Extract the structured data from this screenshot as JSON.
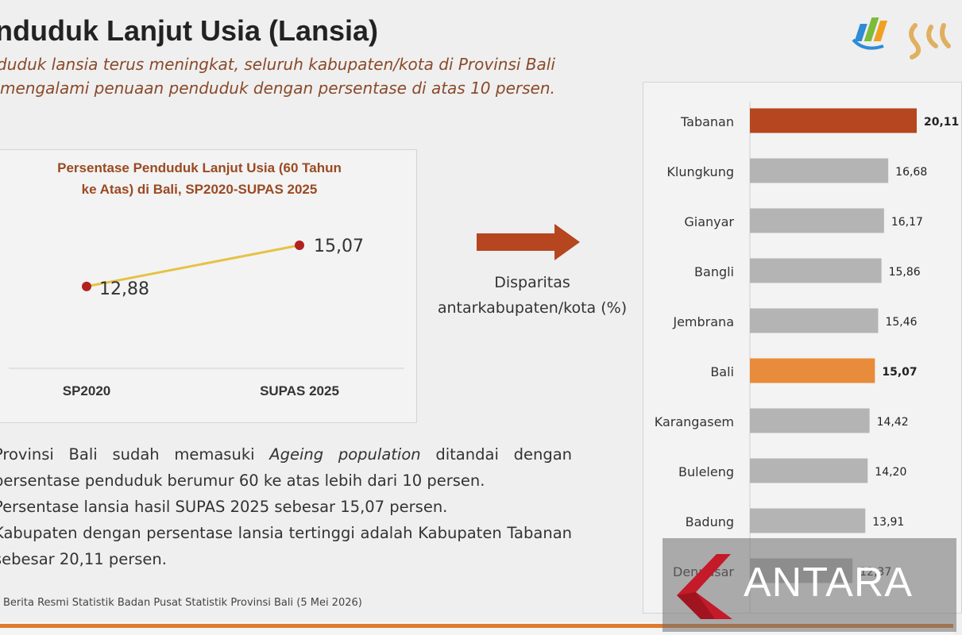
{
  "slide": {
    "title": "nduduk Lanjut Usia (Lansia)",
    "subtitle_lines": [
      "duduk lansia terus meningkat, seluruh kabupaten/kota di Provinsi Bali",
      "mengalami penuaan penduduk dengan persentase di atas 10 persen."
    ],
    "arrow_label_lines": [
      "Disparitas",
      "antarkabupaten/kota (%)"
    ],
    "bullets": [
      {
        "pre": "Provinsi Bali sudah memasuki ",
        "em": "Ageing population",
        "post": " ditandai dengan persentase penduduk berumur 60 ke atas lebih dari 10 persen."
      },
      {
        "pre": "Persentase lansia hasil SUPAS 2025 sebesar 15,07 persen.",
        "em": "",
        "post": ""
      },
      {
        "pre": "Kabupaten dengan persentase lansia tertinggi adalah Kabupaten Tabanan sebesar 20,11 persen.",
        "em": "",
        "post": ""
      }
    ],
    "source": "Berita Resmi Statistik Badan Pusat Statistik Provinsi Bali (5 Mei 2026)",
    "watermark": "ANTARA",
    "colors": {
      "accent": "#b5461f",
      "bali": "#e88b3a",
      "bar_default": "#b4b4b4",
      "line": "#e6c244",
      "point": "#b32020",
      "title_text": "#9a4a22",
      "strip": "#e07a2e"
    }
  },
  "chart_data": [
    {
      "type": "line",
      "title_lines": [
        "Persentase Penduduk Lanjut Usia (60 Tahun",
        "ke Atas) di Bali, SP2020-SUPAS 2025"
      ],
      "categories": [
        "SP2020",
        "SUPAS 2025"
      ],
      "series": [
        {
          "values": [
            12.88,
            15.07
          ]
        }
      ],
      "data_labels": [
        "12,88",
        "15,07"
      ],
      "ylim": [
        10,
        16
      ],
      "grid": false
    },
    {
      "type": "bar",
      "orientation": "horizontal",
      "categories": [
        "Tabanan",
        "Klungkung",
        "Gianyar",
        "Bangli",
        "Jembrana",
        "Bali",
        "Karangasem",
        "Buleleng",
        "Badung",
        "Denpasar"
      ],
      "values": [
        20.11,
        16.68,
        16.17,
        15.86,
        15.46,
        15.07,
        14.42,
        14.2,
        13.91,
        12.37
      ],
      "data_labels": [
        "20,11",
        "16,68",
        "16,17",
        "15,86",
        "15,46",
        "15,07",
        "14,42",
        "14,20",
        "13,91",
        "12,37"
      ],
      "highlight": {
        "Tabanan": "#b5461f",
        "Bali": "#e88b3a"
      },
      "bold_labels": [
        "Tabanan",
        "Bali"
      ],
      "xlim": [
        0,
        20.11
      ]
    }
  ]
}
